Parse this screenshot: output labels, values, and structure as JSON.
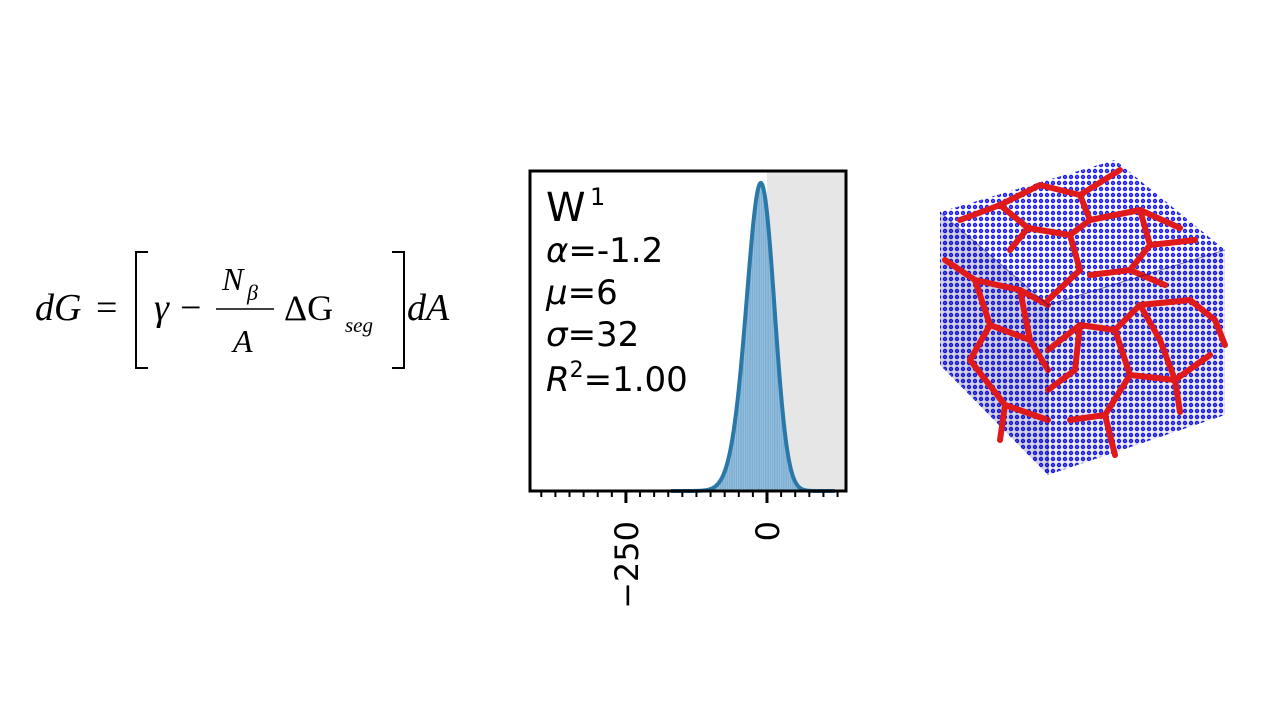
{
  "equation": {
    "lhs": "dG",
    "equals": "=",
    "gamma": "γ",
    "minus": "−",
    "numerator_base": "N",
    "numerator_sub": "β",
    "denominator": "A",
    "delta_g": "ΔG",
    "delta_g_sub": "seg",
    "rhs": "dA"
  },
  "chart_data": {
    "type": "area",
    "element": "W",
    "element_sup": "1",
    "params": [
      {
        "sym": "α",
        "value": "=-1.2"
      },
      {
        "sym": "μ",
        "value": "=6"
      },
      {
        "sym": "σ",
        "value": "=32"
      },
      {
        "sym": "R",
        "sup": "2",
        "value": "=1.00"
      }
    ],
    "x_ticks": [
      {
        "value": -250,
        "label": "−250"
      },
      {
        "value": 0,
        "label": "0"
      }
    ],
    "xlim": [
      -420,
      140
    ],
    "minor_tick_step": 25,
    "shaded_region": [
      0,
      140
    ],
    "fit": {
      "shape": "skew-normal",
      "alpha": -1.2,
      "mu": 6,
      "sigma": 32
    },
    "colors": {
      "fill": "#7fb0d4",
      "line": "#2a78a8",
      "shade": "#e6e6e6"
    }
  },
  "structure": {
    "grain_color": "#1414e6",
    "boundary_color": "#e01a1a"
  }
}
